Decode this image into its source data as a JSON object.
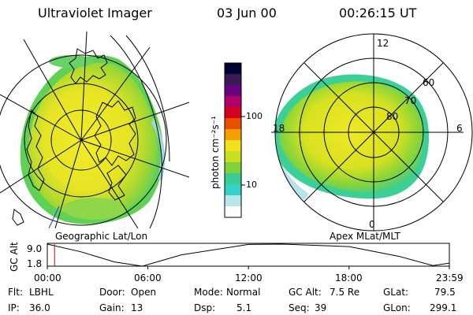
{
  "header": {
    "instrument": "Ultraviolet Imager",
    "date": "03 Jun 00",
    "time": "00:26:15 UT"
  },
  "colorbar": {
    "unit_label": "photon cm⁻²s⁻¹",
    "ticks": [
      "100",
      "10"
    ],
    "colors": [
      "#000033",
      "#3a1a55",
      "#6a0080",
      "#b0006a",
      "#d40020",
      "#e85000",
      "#f5a000",
      "#f0e020",
      "#c8e020",
      "#7ed23c",
      "#37cd93",
      "#34d2c8",
      "#b8e6ea",
      "#ffffff"
    ]
  },
  "left_panel": {
    "caption": "Geographic Lat/Lon"
  },
  "right_panel": {
    "caption": "Apex MLat/MLT",
    "mlt_labels": [
      "12",
      "6",
      "0",
      "18"
    ],
    "mlat_labels": [
      "60",
      "70",
      "80"
    ]
  },
  "timeline": {
    "ylabel": "GC Alt",
    "y_ticks": [
      "9.0",
      "1.8"
    ],
    "x_ticks": [
      "00:00",
      "06:00",
      "12:00",
      "18:00",
      "23:59"
    ]
  },
  "chart_data": {
    "type": "line",
    "title": "",
    "xlabel": "",
    "ylabel": "GC Alt",
    "x": [
      "00:00",
      "02:00",
      "04:00",
      "05:40",
      "08:00",
      "12:00",
      "14:00",
      "18:00",
      "21:00",
      "23:00",
      "23:59"
    ],
    "series": [
      {
        "values": [
          9.0,
          6.5,
          3.2,
          1.8,
          5.5,
          8.9,
          9.0,
          8.2,
          5.0,
          2.0,
          2.8
        ]
      }
    ],
    "marker_time": "00:26",
    "ylim": [
      1.8,
      9.0
    ]
  },
  "status": {
    "flt_label": "Flt:",
    "flt_value": "LBHL",
    "ip_label": "IP:",
    "ip_value": "36.0",
    "door_label": "Door:",
    "door_value": "Open",
    "gain_label": "Gain:",
    "gain_value": "13",
    "mode_label": "Mode:",
    "mode_value": "Normal",
    "dsp_label": "Dsp:",
    "dsp_value": "5.1",
    "gcalt_label": "GC Alt:",
    "gcalt_value": "7.5 Re",
    "seq_label": "Seq:",
    "seq_value": "39",
    "glat_label": "GLat:",
    "glat_value": "79.5",
    "glon_label": "GLon:",
    "glon_value": "299.1"
  }
}
